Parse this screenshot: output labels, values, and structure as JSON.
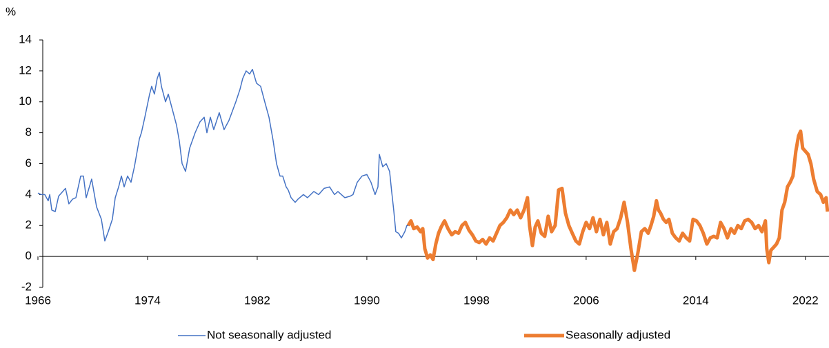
{
  "chart_data": {
    "type": "line",
    "ylabel": "%",
    "xlim": [
      1966,
      2023.62
    ],
    "xticks": [
      1966,
      1974,
      1982,
      1990,
      1998,
      2006,
      2014,
      2022
    ],
    "ylim": [
      -2,
      14
    ],
    "yticks": [
      -2,
      0,
      2,
      4,
      6,
      8,
      10,
      12,
      14
    ],
    "legend": "bottom",
    "grid": false,
    "series": [
      {
        "name": "Not seasonally adjusted",
        "color": "#4472c4",
        "width": 1.5,
        "x": [
          1966.0,
          1966.25,
          1966.5,
          1966.75,
          1966.86,
          1967.01,
          1967.26,
          1967.51,
          1968.01,
          1968.26,
          1968.52,
          1968.77,
          1969.12,
          1969.32,
          1969.52,
          1969.92,
          1970.28,
          1970.63,
          1970.88,
          1971.13,
          1971.43,
          1971.64,
          1971.89,
          1972.09,
          1972.29,
          1972.54,
          1972.79,
          1973.04,
          1973.4,
          1973.55,
          1973.8,
          1974.15,
          1974.3,
          1974.5,
          1974.7,
          1974.86,
          1975.01,
          1975.31,
          1975.51,
          1975.81,
          1976.11,
          1976.31,
          1976.52,
          1976.77,
          1977.07,
          1977.47,
          1977.82,
          1978.13,
          1978.33,
          1978.58,
          1978.83,
          1979.23,
          1979.58,
          1979.94,
          1980.44,
          1980.74,
          1980.94,
          1981.19,
          1981.45,
          1981.65,
          1981.95,
          1982.25,
          1982.55,
          1982.86,
          1983.16,
          1983.41,
          1983.66,
          1983.86,
          1984.11,
          1984.26,
          1984.47,
          1984.77,
          1984.97,
          1985.37,
          1985.67,
          1986.13,
          1986.48,
          1986.88,
          1987.28,
          1987.64,
          1987.89,
          1988.39,
          1988.79,
          1988.99,
          1989.3,
          1989.65,
          1990.0,
          1990.3,
          1990.6,
          1990.81,
          1990.91,
          1991.16,
          1991.41,
          1991.66,
          1991.81,
          1991.96,
          1992.11,
          1992.31,
          1992.52,
          1992.77,
          1992.92,
          1993.02,
          1993.22,
          1993.42,
          1993.67,
          1993.92,
          1994.08,
          1994.23,
          1994.43,
          1994.63,
          1994.83,
          1995.03,
          1995.23,
          1995.42,
          1995.67,
          1995.92,
          1996.19,
          1996.44,
          1996.69,
          1996.94,
          1997.19,
          1997.45,
          1997.7,
          1997.95,
          1998.2,
          1998.45,
          1998.7,
          1998.96,
          1999.21,
          1999.46,
          1999.71,
          1999.96,
          2000.21,
          2000.47,
          2000.72,
          2000.97,
          2001.22,
          2001.47,
          2001.72,
          2001.87,
          2002.08,
          2002.28,
          2002.48,
          2002.73,
          2002.98,
          2003.23,
          2003.48,
          2003.74,
          2003.99,
          2004.24,
          2004.49,
          2004.74,
          2004.99,
          2005.25,
          2005.5,
          2005.75,
          2006.0,
          2006.25,
          2006.5,
          2006.75,
          2007.01,
          2007.26,
          2007.51,
          2007.76,
          2008.01,
          2008.26,
          2008.52,
          2008.77,
          2009.02,
          2009.27,
          2009.52,
          2009.77,
          2010.03,
          2010.28,
          2010.53,
          2010.73,
          2010.93,
          2011.13,
          2011.28,
          2011.43,
          2011.64,
          2011.84,
          2012.04,
          2012.29,
          2012.54,
          2012.79,
          2013.04,
          2013.3,
          2013.55,
          2013.8,
          2014.05,
          2014.3,
          2014.55,
          2014.81,
          2015.06,
          2015.31,
          2015.56,
          2015.81,
          2016.06,
          2016.31,
          2016.57,
          2016.82,
          2017.07,
          2017.32,
          2017.57,
          2017.82,
          2018.08,
          2018.33,
          2018.58,
          2018.83,
          2019.08,
          2019.18,
          2019.33,
          2019.48,
          2019.69,
          2019.89,
          2020.09,
          2020.29,
          2020.49,
          2020.69,
          2020.89,
          2021.09,
          2021.3,
          2021.5,
          2021.65,
          2021.8,
          2022.0,
          2022.2,
          2022.4,
          2022.6,
          2022.86,
          2023.11,
          2023.31,
          2023.51,
          2023.61
        ],
        "values": [
          4.1,
          4.0,
          4.0,
          3.6,
          4.0,
          3.0,
          2.9,
          3.9,
          4.4,
          3.4,
          3.7,
          3.8,
          5.2,
          5.2,
          3.8,
          5.0,
          3.2,
          2.4,
          1.0,
          1.6,
          2.4,
          3.8,
          4.5,
          5.2,
          4.5,
          5.2,
          4.8,
          5.8,
          7.6,
          8.0,
          9.0,
          10.5,
          11.0,
          10.5,
          11.5,
          11.9,
          11.0,
          10.0,
          10.5,
          9.5,
          8.5,
          7.5,
          6.0,
          5.5,
          7.0,
          8.0,
          8.7,
          9.0,
          8.0,
          9.0,
          8.2,
          9.3,
          8.2,
          8.8,
          10.0,
          10.8,
          11.5,
          12.0,
          11.8,
          12.1,
          11.2,
          11.0,
          10.0,
          9.0,
          7.5,
          6.0,
          5.2,
          5.2,
          4.5,
          4.3,
          3.8,
          3.5,
          3.7,
          4.0,
          3.8,
          4.2,
          4.0,
          4.4,
          4.5,
          4.0,
          4.2,
          3.8,
          3.9,
          4.0,
          4.8,
          5.2,
          5.3,
          4.8,
          4.0,
          4.5,
          6.6,
          5.8,
          6.0,
          5.5,
          4.2,
          3.0,
          1.6,
          1.5,
          1.2,
          1.6,
          2.0,
          2.0,
          2.3,
          1.8,
          1.9,
          1.6,
          1.8,
          0.5,
          -0.1,
          0.1,
          -0.2,
          0.8,
          1.5,
          1.9,
          2.3,
          1.8,
          1.4,
          1.6,
          1.5,
          2.0,
          2.2,
          1.7,
          1.4,
          1.0,
          0.9,
          1.1,
          0.8,
          1.2,
          1.0,
          1.5,
          2.0,
          2.2,
          2.5,
          3.0,
          2.7,
          3.0,
          2.5,
          3.0,
          3.8,
          2.0,
          0.7,
          1.9,
          2.3,
          1.5,
          1.3,
          2.6,
          1.6,
          2.0,
          4.3,
          4.4,
          2.8,
          2.0,
          1.5,
          1.0,
          0.8,
          1.6,
          2.2,
          1.8,
          2.5,
          1.6,
          2.4,
          1.4,
          2.2,
          0.8,
          1.6,
          1.8,
          2.5,
          3.5,
          2.2,
          0.5,
          -0.9,
          0.2,
          1.6,
          1.8,
          1.5,
          2.0,
          2.6,
          3.6,
          3.0,
          2.8,
          2.4,
          2.2,
          2.4,
          1.5,
          1.2,
          1.0,
          1.5,
          1.2,
          1.0,
          2.4,
          2.3,
          2.0,
          1.5,
          0.8,
          1.2,
          1.3,
          1.2,
          2.2,
          1.8,
          1.2,
          1.8,
          1.5,
          2.0,
          1.8,
          2.3,
          2.4,
          2.2,
          1.8,
          2.0,
          1.6,
          2.3,
          0.5,
          -0.4,
          0.4,
          0.6,
          0.8,
          1.2,
          3.0,
          3.5,
          4.5,
          4.8,
          5.2,
          6.8,
          7.8,
          8.1,
          7.0,
          6.8,
          6.6,
          6.0,
          5.0,
          4.2,
          4.0,
          3.5,
          3.8,
          2.9
        ]
      },
      {
        "name": "Seasonally adjusted",
        "color": "#ed7d31",
        "width": 5,
        "x": [
          1993.02,
          1993.22,
          1993.42,
          1993.67,
          1993.92,
          1994.08,
          1994.23,
          1994.43,
          1994.63,
          1994.83,
          1995.03,
          1995.23,
          1995.42,
          1995.67,
          1995.92,
          1996.19,
          1996.44,
          1996.69,
          1996.94,
          1997.19,
          1997.45,
          1997.7,
          1997.95,
          1998.2,
          1998.45,
          1998.7,
          1998.96,
          1999.21,
          1999.46,
          1999.71,
          1999.96,
          2000.21,
          2000.47,
          2000.72,
          2000.97,
          2001.22,
          2001.47,
          2001.72,
          2001.87,
          2002.08,
          2002.28,
          2002.48,
          2002.73,
          2002.98,
          2003.23,
          2003.48,
          2003.74,
          2003.99,
          2004.24,
          2004.49,
          2004.74,
          2004.99,
          2005.25,
          2005.5,
          2005.75,
          2006.0,
          2006.25,
          2006.5,
          2006.75,
          2007.01,
          2007.26,
          2007.51,
          2007.76,
          2008.01,
          2008.26,
          2008.52,
          2008.77,
          2009.02,
          2009.27,
          2009.52,
          2009.77,
          2010.03,
          2010.28,
          2010.53,
          2010.73,
          2010.93,
          2011.13,
          2011.28,
          2011.43,
          2011.64,
          2011.84,
          2012.04,
          2012.29,
          2012.54,
          2012.79,
          2013.04,
          2013.3,
          2013.55,
          2013.8,
          2014.05,
          2014.3,
          2014.55,
          2014.81,
          2015.06,
          2015.31,
          2015.56,
          2015.81,
          2016.06,
          2016.31,
          2016.57,
          2016.82,
          2017.07,
          2017.32,
          2017.57,
          2017.82,
          2018.08,
          2018.33,
          2018.58,
          2018.83,
          2019.08,
          2019.18,
          2019.33,
          2019.48,
          2019.69,
          2019.89,
          2020.09,
          2020.29,
          2020.49,
          2020.69,
          2020.89,
          2021.09,
          2021.3,
          2021.5,
          2021.65,
          2021.8,
          2022.0,
          2022.2,
          2022.4,
          2022.6,
          2022.86,
          2023.11,
          2023.31,
          2023.51,
          2023.61
        ],
        "values": [
          2.0,
          2.3,
          1.8,
          1.9,
          1.6,
          1.8,
          0.5,
          -0.1,
          0.1,
          -0.2,
          0.8,
          1.5,
          1.9,
          2.3,
          1.8,
          1.4,
          1.6,
          1.5,
          2.0,
          2.2,
          1.7,
          1.4,
          1.0,
          0.9,
          1.1,
          0.8,
          1.2,
          1.0,
          1.5,
          2.0,
          2.2,
          2.5,
          3.0,
          2.7,
          3.0,
          2.5,
          3.0,
          3.8,
          2.0,
          0.7,
          1.9,
          2.3,
          1.5,
          1.3,
          2.6,
          1.6,
          2.0,
          4.3,
          4.4,
          2.8,
          2.0,
          1.5,
          1.0,
          0.8,
          1.6,
          2.2,
          1.8,
          2.5,
          1.6,
          2.4,
          1.4,
          2.2,
          0.8,
          1.6,
          1.8,
          2.5,
          3.5,
          2.2,
          0.5,
          -0.9,
          0.2,
          1.6,
          1.8,
          1.5,
          2.0,
          2.6,
          3.6,
          3.0,
          2.8,
          2.4,
          2.2,
          2.4,
          1.5,
          1.2,
          1.0,
          1.5,
          1.2,
          1.0,
          2.4,
          2.3,
          2.0,
          1.5,
          0.8,
          1.2,
          1.3,
          1.2,
          2.2,
          1.8,
          1.2,
          1.8,
          1.5,
          2.0,
          1.8,
          2.3,
          2.4,
          2.2,
          1.8,
          2.0,
          1.6,
          2.3,
          0.5,
          -0.4,
          0.4,
          0.6,
          0.8,
          1.2,
          3.0,
          3.5,
          4.5,
          4.8,
          5.2,
          6.8,
          7.8,
          8.1,
          7.0,
          6.8,
          6.6,
          6.0,
          5.0,
          4.2,
          4.0,
          3.5,
          3.8,
          2.9
        ]
      }
    ]
  }
}
